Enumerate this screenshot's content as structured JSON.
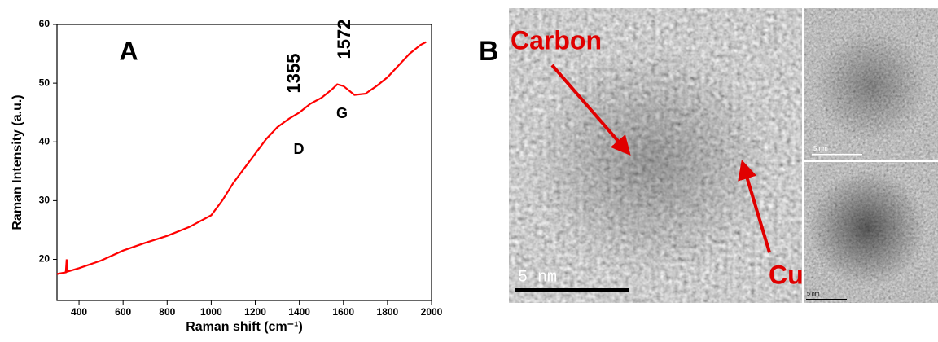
{
  "chart_data": {
    "type": "line",
    "x_label": "Raman shift (cm⁻¹)",
    "y_label": "Raman Intensity (a.u.)",
    "annotations": [
      "A",
      "1355",
      "1572",
      "D",
      "G"
    ],
    "x": [
      300,
      340,
      344,
      346,
      400,
      500,
      600,
      700,
      800,
      900,
      1000,
      1050,
      1100,
      1150,
      1200,
      1250,
      1300,
      1355,
      1400,
      1450,
      1500,
      1550,
      1572,
      1600,
      1650,
      1700,
      1750,
      1800,
      1850,
      1900,
      1950,
      1975
    ],
    "values": [
      17.5,
      17.8,
      20,
      17.9,
      18.5,
      19.8,
      21.5,
      22.8,
      24,
      25.5,
      27.5,
      30,
      33,
      35.5,
      38,
      40.5,
      42.5,
      44,
      45,
      46.5,
      47.5,
      49,
      49.8,
      49.5,
      48,
      48.2,
      49.5,
      51,
      53,
      55,
      56.5,
      57
    ],
    "color": "#ff0000",
    "xlim": [
      300,
      2000
    ],
    "xticks": [
      400,
      600,
      800,
      1000,
      1200,
      1400,
      1600,
      1800,
      2000
    ],
    "ylim": [
      13,
      60
    ],
    "yticks": [
      20,
      30,
      40,
      50,
      60
    ]
  },
  "panel_b": {
    "label": "B",
    "annotations": [
      "Carbon",
      "Cu"
    ],
    "scale_bars": [
      "5 nm",
      "5 nm",
      "5 nm"
    ]
  }
}
